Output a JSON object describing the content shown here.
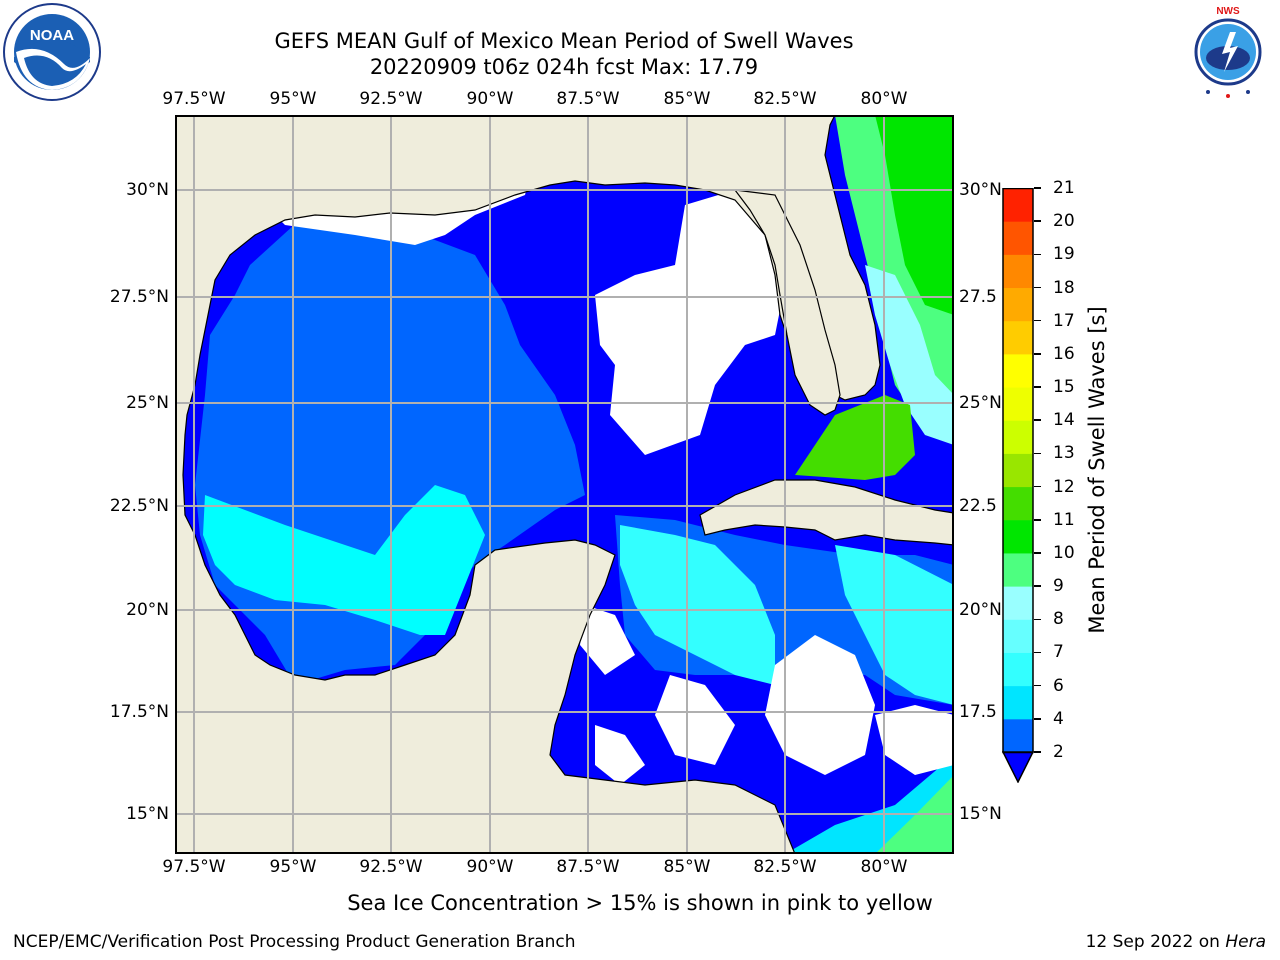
{
  "header": {
    "title_line1": "GEFS MEAN Gulf of Mexico Mean Period of Swell Waves",
    "title_line2": "20220909 t06z 024h fcst   Max: 17.79"
  },
  "logos": {
    "left_name": "noaa-logo",
    "left_text": "NOAA",
    "right_name": "nws-logo",
    "right_text": "NATIONAL WEATHER SERVICE"
  },
  "map": {
    "lon_labels": [
      "97.5°W",
      "95°W",
      "92.5°W",
      "90°W",
      "87.5°W",
      "85°W",
      "82.5°W",
      "80°W"
    ],
    "lat_labels_left": [
      "30°N",
      "27.5°N",
      "25°N",
      "22.5°N",
      "20°N",
      "17.5°N",
      "15°N"
    ],
    "lat_labels_right": [
      "30°N",
      "27.5",
      "25°N",
      "22.5",
      "20°N",
      "17.5",
      "15°N"
    ],
    "colors": {
      "land": "#efeddc",
      "coast": "#000000",
      "grid": "#b0b0b0",
      "no_data": "#ffffff"
    }
  },
  "colorbar": {
    "label": "Mean Period of Swell Waves [s]",
    "ticks": [
      "2",
      "4",
      "6",
      "7",
      "8",
      "9",
      "10",
      "11",
      "12",
      "13",
      "14",
      "15",
      "16",
      "17",
      "18",
      "19",
      "20",
      "21"
    ],
    "colors": [
      "#0066ff",
      "#00e5ff",
      "#33ffff",
      "#66ffff",
      "#99ffff",
      "#4dff80",
      "#00e600",
      "#44dd00",
      "#99e600",
      "#ccff00",
      "#eeff00",
      "#ffff00",
      "#ffcc00",
      "#ffaa00",
      "#ff8800",
      "#ff5500",
      "#ff2200"
    ],
    "extend_color": "#0000ff"
  },
  "notes": {
    "sea_ice": "Sea Ice Concentration > 15% is shown in pink to yellow"
  },
  "footer": {
    "left": "NCEP/EMC/Verification Post Processing Product Generation Branch",
    "right_date": "12 Sep 2022 on ",
    "right_host": "Hera"
  }
}
